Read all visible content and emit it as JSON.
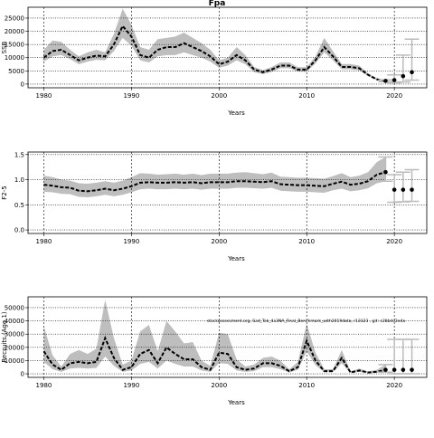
{
  "chart_data": [
    {
      "type": "line",
      "title": "Fpa",
      "xlabel": "Years",
      "ylabel": "SSB",
      "x": [
        1980,
        1981,
        1982,
        1983,
        1984,
        1985,
        1986,
        1987,
        1988,
        1989,
        1990,
        1991,
        1992,
        1993,
        1994,
        1995,
        1996,
        1997,
        1998,
        1999,
        2000,
        2001,
        2002,
        2003,
        2004,
        2005,
        2006,
        2007,
        2008,
        2009,
        2010,
        2011,
        2012,
        2013,
        2014,
        2015,
        2016,
        2017,
        2018,
        2019
      ],
      "values": [
        10000,
        12500,
        13000,
        11000,
        9000,
        10000,
        10800,
        10500,
        15000,
        22000,
        18000,
        11000,
        10000,
        13000,
        14000,
        14000,
        15500,
        14000,
        12500,
        10500,
        7500,
        8500,
        11000,
        9000,
        5500,
        4500,
        5500,
        7000,
        7000,
        5500,
        5500,
        9000,
        14000,
        10500,
        6500,
        6500,
        6000,
        3500,
        1800,
        1200
      ],
      "lower": [
        8500,
        10500,
        11000,
        9500,
        7500,
        8500,
        9200,
        9000,
        12500,
        17500,
        14500,
        9000,
        8200,
        10500,
        11000,
        11000,
        12000,
        11000,
        10000,
        8500,
        6200,
        7000,
        9000,
        7500,
        4500,
        3800,
        4600,
        6000,
        6000,
        4700,
        4700,
        7800,
        12000,
        9000,
        5600,
        5600,
        5200,
        3000,
        1500,
        900
      ],
      "upper": [
        13000,
        16500,
        16000,
        13000,
        10500,
        12000,
        13000,
        12000,
        19000,
        28500,
        22500,
        14000,
        13000,
        17000,
        17500,
        18000,
        19500,
        17500,
        15500,
        13000,
        9000,
        10000,
        14000,
        11000,
        6500,
        5300,
        6500,
        8200,
        8200,
        6400,
        6400,
        10500,
        17500,
        12500,
        7600,
        7600,
        7000,
        4100,
        2200,
        1600
      ],
      "projection": {
        "x": [
          2019,
          2020,
          2021,
          2022
        ],
        "values": [
          1200,
          1500,
          3000,
          4500
        ],
        "lower": [
          900,
          500,
          800,
          1500
        ],
        "upper": [
          1600,
          3500,
          11000,
          17000
        ]
      },
      "color": "#bebebe",
      "xlim": [
        1978.2,
        2023.7
      ],
      "xticks": [
        1980,
        1990,
        2000,
        2010,
        2020
      ],
      "ylim": [
        -1400,
        29100
      ],
      "yticks": [
        0,
        5000,
        10000,
        15000,
        20000,
        25000
      ]
    },
    {
      "type": "line",
      "xlabel": "Years",
      "ylabel": "F2-5",
      "x": [
        1980,
        1981,
        1982,
        1983,
        1984,
        1985,
        1986,
        1987,
        1988,
        1989,
        1990,
        1991,
        1992,
        1993,
        1994,
        1995,
        1996,
        1997,
        1998,
        1999,
        2000,
        2001,
        2002,
        2003,
        2004,
        2005,
        2006,
        2007,
        2008,
        2009,
        2010,
        2011,
        2012,
        2013,
        2014,
        2015,
        2016,
        2017,
        2018,
        2019
      ],
      "values": [
        0.9,
        0.88,
        0.85,
        0.84,
        0.78,
        0.77,
        0.79,
        0.82,
        0.79,
        0.82,
        0.87,
        0.94,
        0.95,
        0.94,
        0.94,
        0.95,
        0.94,
        0.95,
        0.93,
        0.95,
        0.95,
        0.95,
        0.97,
        0.97,
        0.96,
        0.95,
        0.97,
        0.91,
        0.9,
        0.89,
        0.89,
        0.88,
        0.87,
        0.92,
        0.96,
        0.9,
        0.92,
        0.97,
        1.1,
        1.15
      ],
      "lower": [
        0.76,
        0.75,
        0.72,
        0.71,
        0.66,
        0.65,
        0.67,
        0.7,
        0.67,
        0.7,
        0.75,
        0.81,
        0.82,
        0.81,
        0.81,
        0.82,
        0.81,
        0.82,
        0.8,
        0.82,
        0.82,
        0.82,
        0.84,
        0.84,
        0.83,
        0.82,
        0.84,
        0.78,
        0.77,
        0.76,
        0.76,
        0.75,
        0.74,
        0.79,
        0.82,
        0.77,
        0.79,
        0.83,
        0.93,
        0.97
      ],
      "upper": [
        1.08,
        1.05,
        1.0,
        0.98,
        0.93,
        0.92,
        0.94,
        0.97,
        0.94,
        0.98,
        1.05,
        1.13,
        1.12,
        1.1,
        1.11,
        1.12,
        1.1,
        1.12,
        1.09,
        1.12,
        1.12,
        1.12,
        1.14,
        1.15,
        1.13,
        1.11,
        1.14,
        1.06,
        1.05,
        1.04,
        1.04,
        1.03,
        1.02,
        1.07,
        1.13,
        1.05,
        1.08,
        1.15,
        1.35,
        1.45
      ],
      "projection": {
        "x": [
          2019,
          2020,
          2021,
          2022
        ],
        "values": [
          1.15,
          0.8,
          0.8,
          0.8
        ],
        "lower": [
          0.97,
          0.55,
          0.56,
          0.57
        ],
        "upper": [
          1.45,
          1.1,
          1.15,
          1.2
        ]
      },
      "color": "#bebebe",
      "xlim": [
        1978.2,
        2023.7
      ],
      "xticks": [
        1980,
        1990,
        2000,
        2010,
        2020
      ],
      "ylim": [
        -0.07,
        1.55
      ],
      "yticks": [
        {
          "value": 0,
          "label": "0.0"
        },
        0.5,
        {
          "value": 1,
          "label": "1.0"
        },
        1.5
      ]
    },
    {
      "type": "line",
      "xlabel": "Years",
      "ylabel": "Recruits (Age 1)",
      "annotation": "stockassessment.org, Sad_Tok_4a3NA_Final_Benchmark_with2019data, r13123 , git: c28bdc2e4a",
      "x": [
        1980,
        1981,
        1982,
        1983,
        1984,
        1985,
        1986,
        1987,
        1988,
        1989,
        1990,
        1991,
        1992,
        1993,
        1994,
        1995,
        1996,
        1997,
        1998,
        1999,
        2000,
        2001,
        2002,
        2003,
        2004,
        2005,
        2006,
        2007,
        2008,
        2009,
        2010,
        2011,
        2012,
        2013,
        2014,
        2015,
        2016,
        2017,
        2018,
        2019
      ],
      "values": [
        17000,
        7000,
        3000,
        8000,
        9000,
        8000,
        9000,
        27000,
        12000,
        3000,
        5000,
        15000,
        18000,
        8000,
        20000,
        15000,
        11000,
        11000,
        5000,
        3000,
        16000,
        15000,
        5000,
        3000,
        4000,
        8000,
        8000,
        6000,
        2000,
        5000,
        25000,
        10000,
        2000,
        2000,
        12000,
        1000,
        2500,
        1000,
        1500,
        3000
      ],
      "lower": [
        9000,
        3500,
        1500,
        4000,
        4500,
        4000,
        4500,
        13000,
        6000,
        1500,
        2500,
        7500,
        9000,
        4000,
        10000,
        7500,
        5500,
        5500,
        2500,
        1500,
        8000,
        7500,
        2500,
        1500,
        2000,
        5000,
        5000,
        3500,
        1000,
        3000,
        17000,
        6500,
        1200,
        1200,
        8000,
        600,
        1500,
        600,
        800,
        1200
      ],
      "upper": [
        36000,
        14000,
        5500,
        15000,
        18000,
        15000,
        19000,
        56000,
        27000,
        7000,
        10000,
        32000,
        37000,
        17000,
        40000,
        32000,
        23000,
        24000,
        10000,
        6000,
        31000,
        30000,
        11000,
        5500,
        7000,
        12000,
        13000,
        10000,
        3500,
        9000,
        38000,
        16000,
        3500,
        3500,
        18000,
        1800,
        4000,
        1800,
        3000,
        7000
      ],
      "projection": {
        "x": [
          2019,
          2020,
          2021,
          2022
        ],
        "values": [
          3000,
          3000,
          3000,
          3000
        ],
        "lower": [
          1200,
          0,
          0,
          0
        ],
        "upper": [
          7000,
          26000,
          26000,
          26000
        ]
      },
      "color": "#bebebe",
      "xlim": [
        1978.2,
        2023.7
      ],
      "xticks": [
        1980,
        1990,
        2000,
        2010,
        2020
      ],
      "ylim": [
        -2700,
        58200
      ],
      "yticks": [
        0,
        10000,
        20000,
        30000,
        40000,
        50000
      ]
    }
  ]
}
